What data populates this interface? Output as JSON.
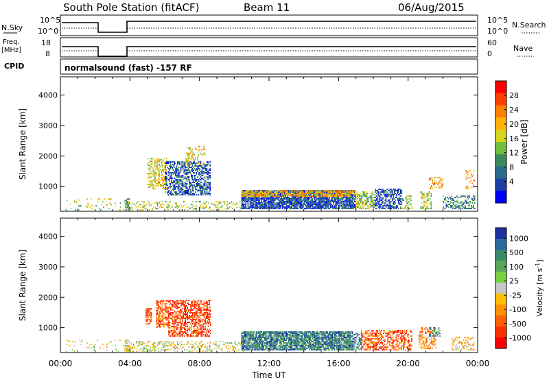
{
  "header": {
    "station": "South Pole Station (fitACF)",
    "beam": "Beam 11",
    "date": "06/Aug/2015"
  },
  "small_panels": {
    "nsky_label": "N.Sky",
    "nsearch_label": "N.Search",
    "freq_label_1": "Freq.",
    "freq_label_2": "[MHz]",
    "nave_label": "Nave",
    "cpid_label": "CPID",
    "cpid_text": "normalsound (fast) -157 RF",
    "noise_ticks_left": [
      "10^5",
      "10^0"
    ],
    "noise_ticks_right": [
      "10^5",
      "10^0"
    ],
    "freq_ticks": [
      "18",
      "8"
    ],
    "nave_ticks": [
      "60",
      "0"
    ]
  },
  "colorbars": {
    "power": {
      "label": "Power [dB]",
      "ticks": [
        "28",
        "24",
        "20",
        "16",
        "12",
        "8",
        "4"
      ],
      "colors": [
        "#0000ff",
        "#1a3fa6",
        "#2a6a8a",
        "#3a8a5a",
        "#6fbf3f",
        "#d6d61e",
        "#ffb000",
        "#ff8000",
        "#ff4000",
        "#ff0000"
      ]
    },
    "velocity": {
      "label": "Velocity [m s",
      "label_sup": "-1",
      "label_end": "]",
      "ticks": [
        "1000",
        "500",
        "100",
        "25",
        "-25",
        "-100",
        "-500",
        "-1000"
      ],
      "colors": [
        "#1a2fa0",
        "#2a6aa0",
        "#3a8a6a",
        "#5aa55a",
        "#79d040",
        "#c8c8c8",
        "#ffc000",
        "#ff9000",
        "#ff6000",
        "#ff3000",
        "#ff0000"
      ]
    }
  },
  "chart_data": [
    {
      "type": "heatmap",
      "title": "",
      "ylabel": "Slant Range [km]",
      "xlabel": "",
      "xlim": [
        0,
        24
      ],
      "ylim": [
        180,
        4600
      ],
      "yticks": [
        "1000",
        "2000",
        "3000",
        "4000"
      ],
      "xticklabels": [
        "00:00",
        "04:00",
        "08:00",
        "12:00",
        "16:00",
        "20:00",
        "00:00"
      ],
      "quantity": "Power [dB]",
      "regions": [
        {
          "t0": 0.3,
          "t1": 4.0,
          "r0": 200,
          "r1": 600,
          "level": 0.5,
          "density": 0.12
        },
        {
          "t0": 3.7,
          "t1": 4.0,
          "r0": 200,
          "r1": 600,
          "level": 0.6,
          "density": 0.7
        },
        {
          "t0": 4.0,
          "t1": 10.5,
          "r0": 200,
          "r1": 500,
          "level": 0.5,
          "density": 0.25
        },
        {
          "t0": 5.0,
          "t1": 6.1,
          "r0": 900,
          "r1": 1900,
          "level": 0.45,
          "density": 0.5
        },
        {
          "t0": 6.0,
          "t1": 8.6,
          "r0": 700,
          "r1": 1800,
          "level": 0.78,
          "density": 0.55
        },
        {
          "t0": 7.2,
          "t1": 8.3,
          "r0": 1700,
          "r1": 2300,
          "level": 0.4,
          "density": 0.3
        },
        {
          "t0": 10.4,
          "t1": 17.0,
          "r0": 250,
          "r1": 850,
          "level": 0.82,
          "density": 0.85
        },
        {
          "t0": 10.4,
          "t1": 17.0,
          "r0": 650,
          "r1": 850,
          "level": 0.35,
          "density": 0.7
        },
        {
          "t0": 17.0,
          "t1": 18.1,
          "r0": 250,
          "r1": 800,
          "level": 0.55,
          "density": 0.55
        },
        {
          "t0": 18.1,
          "t1": 19.6,
          "r0": 250,
          "r1": 900,
          "level": 0.8,
          "density": 0.6
        },
        {
          "t0": 19.6,
          "t1": 20.2,
          "r0": 250,
          "r1": 700,
          "level": 0.55,
          "density": 0.4
        },
        {
          "t0": 20.7,
          "t1": 21.3,
          "r0": 250,
          "r1": 800,
          "level": 0.5,
          "density": 0.5
        },
        {
          "t0": 21.2,
          "t1": 22.0,
          "r0": 900,
          "r1": 1300,
          "level": 0.3,
          "density": 0.35
        },
        {
          "t0": 22.0,
          "t1": 23.8,
          "r0": 250,
          "r1": 700,
          "level": 0.7,
          "density": 0.45
        },
        {
          "t0": 23.3,
          "t1": 23.8,
          "r0": 900,
          "r1": 1500,
          "level": 0.3,
          "density": 0.3
        }
      ]
    },
    {
      "type": "heatmap",
      "title": "",
      "ylabel": "Slant Range [km]",
      "xlabel": "Time UT",
      "xlim": [
        0,
        24
      ],
      "ylim": [
        180,
        4600
      ],
      "yticks": [
        "1000",
        "2000",
        "3000",
        "4000"
      ],
      "xticklabels": [
        "00:00",
        "04:00",
        "08:00",
        "12:00",
        "16:00",
        "20:00",
        "00:00"
      ],
      "quantity": "Velocity [m s-1]",
      "regions": [
        {
          "t0": 0.3,
          "t1": 4.0,
          "r0": 200,
          "r1": 600,
          "level": 0.5,
          "density": 0.1
        },
        {
          "t0": 3.7,
          "t1": 4.0,
          "r0": 200,
          "r1": 600,
          "level": 0.55,
          "density": 0.6
        },
        {
          "t0": 4.0,
          "t1": 10.5,
          "r0": 200,
          "r1": 550,
          "level": 0.5,
          "density": 0.3
        },
        {
          "t0": 4.9,
          "t1": 5.2,
          "r0": 1100,
          "r1": 1600,
          "level": 0.82,
          "density": 0.6
        },
        {
          "t0": 5.5,
          "t1": 6.2,
          "r0": 1000,
          "r1": 1900,
          "level": 0.78,
          "density": 0.55
        },
        {
          "t0": 6.2,
          "t1": 8.6,
          "r0": 700,
          "r1": 1900,
          "level": 0.84,
          "density": 0.55
        },
        {
          "t0": 10.4,
          "t1": 16.8,
          "r0": 250,
          "r1": 850,
          "level": 0.2,
          "density": 0.85
        },
        {
          "t0": 16.8,
          "t1": 17.3,
          "r0": 250,
          "r1": 800,
          "level": 0.2,
          "density": 0.55
        },
        {
          "t0": 17.3,
          "t1": 20.2,
          "r0": 250,
          "r1": 900,
          "level": 0.8,
          "density": 0.5
        },
        {
          "t0": 20.6,
          "t1": 21.6,
          "r0": 300,
          "r1": 1000,
          "level": 0.7,
          "density": 0.45
        },
        {
          "t0": 21.2,
          "t1": 21.8,
          "r0": 700,
          "r1": 1000,
          "level": 0.25,
          "density": 0.4
        },
        {
          "t0": 22.5,
          "t1": 23.8,
          "r0": 250,
          "r1": 700,
          "level": 0.6,
          "density": 0.4
        }
      ]
    }
  ]
}
